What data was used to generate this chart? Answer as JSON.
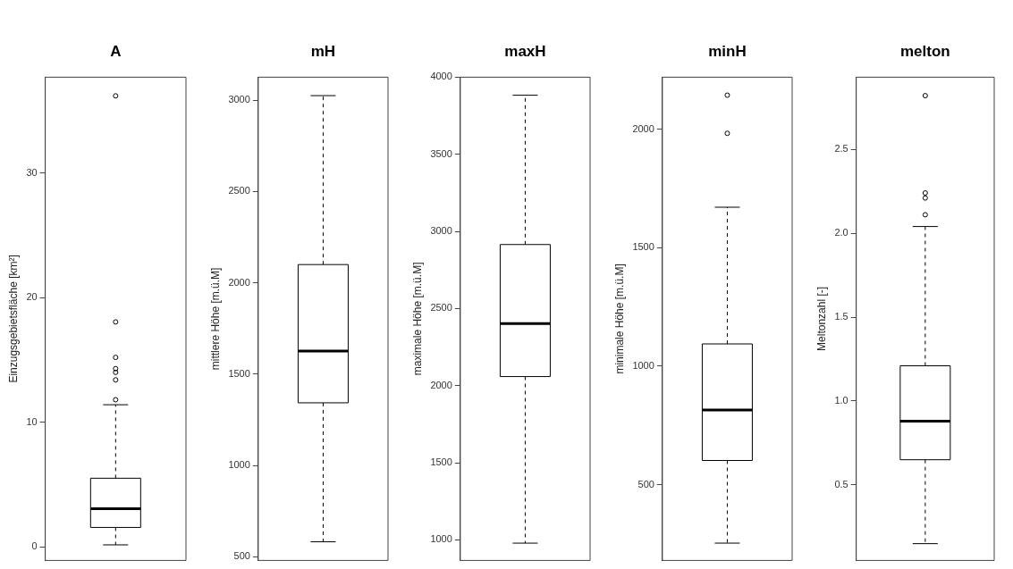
{
  "chart_data": [
    {
      "type": "box",
      "ylabel": "Einzugsgebietsfläche [km²]",
      "categories": [
        "A"
      ],
      "grid": false,
      "ylim": [
        -1.1,
        37.7
      ],
      "yticks": [
        0,
        10,
        20,
        30
      ],
      "boxes": [
        {
          "low": 0.15,
          "q1": 1.55,
          "median": 3.05,
          "q3": 5.5,
          "high": 11.4,
          "outliers": [
            11.8,
            13.4,
            14.0,
            14.3,
            15.2,
            18.05,
            36.2
          ]
        }
      ]
    },
    {
      "type": "box",
      "ylabel": "mittlere Höhe [m.ü.M]",
      "categories": [
        "mH"
      ],
      "grid": false,
      "ylim": [
        480,
        3126
      ],
      "yticks": [
        500,
        1000,
        1500,
        2000,
        2500,
        3000
      ],
      "boxes": [
        {
          "low": 582,
          "q1": 1343,
          "median": 1627,
          "q3": 2100,
          "high": 3025
        }
      ]
    },
    {
      "type": "box",
      "ylabel": "maximale Höhe [m.ü.M]",
      "categories": [
        "maxH"
      ],
      "grid": false,
      "ylim": [
        867,
        4000
      ],
      "yticks": [
        1000,
        1500,
        2000,
        2500,
        3000,
        3500,
        4000
      ],
      "boxes": [
        {
          "low": 979,
          "q1": 2059,
          "median": 2403,
          "q3": 2915,
          "high": 3883
        }
      ]
    },
    {
      "type": "box",
      "ylabel": "minimale Höhe [m.ü.M]",
      "categories": [
        "minH"
      ],
      "grid": false,
      "ylim": [
        180,
        2220
      ],
      "yticks": [
        500,
        1000,
        1500,
        2000
      ],
      "boxes": [
        {
          "low": 253,
          "q1": 602,
          "median": 815,
          "q3": 1094,
          "high": 1671,
          "outliers": [
            1983,
            2144
          ]
        }
      ]
    },
    {
      "type": "box",
      "ylabel": "Meltonzahl [-]",
      "categories": [
        "melton"
      ],
      "grid": false,
      "ylim": [
        0.05,
        2.93
      ],
      "yticks": [
        0.5,
        {
          "value": 1,
          "label": "1.0"
        },
        1.5,
        {
          "value": 2,
          "label": "2.0"
        },
        2.5
      ],
      "boxes": [
        {
          "low": 0.15,
          "q1": 0.65,
          "median": 0.88,
          "q3": 1.21,
          "high": 2.04,
          "outliers": [
            2.11,
            2.21,
            2.24,
            2.82
          ]
        }
      ]
    }
  ]
}
